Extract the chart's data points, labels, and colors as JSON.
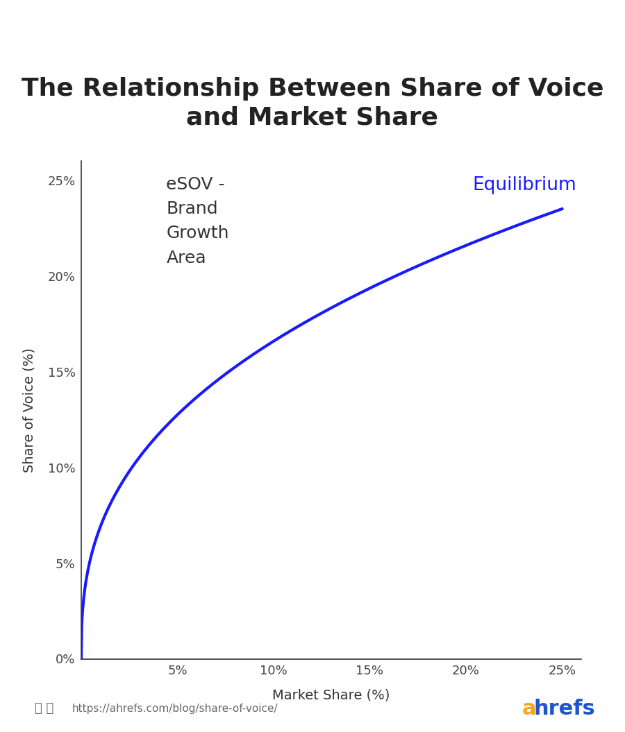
{
  "title": "The Relationship Between Share of Voice\nand Market Share",
  "xlabel": "Market Share (%)",
  "ylabel": "Share of Voice (%)",
  "title_fontsize": 26,
  "label_fontsize": 14,
  "tick_fontsize": 13,
  "line_color": "#1a1aff",
  "line_width": 3.0,
  "annotation_esov": "eSOV -\nBrand\nGrowth\nArea",
  "annotation_eq": "Equilibrium",
  "annotation_eq_color": "#1a1aff",
  "annotation_esov_fontsize": 18,
  "annotation_eq_fontsize": 19,
  "curve_power": 0.38,
  "curve_scale": 0.235,
  "xlim": [
    0,
    0.26
  ],
  "ylim": [
    0,
    0.26
  ],
  "xticks": [
    0.0,
    0.05,
    0.1,
    0.15,
    0.2,
    0.25
  ],
  "yticks": [
    0.0,
    0.05,
    0.1,
    0.15,
    0.2,
    0.25
  ],
  "background_color": "#ffffff",
  "footer_url": "https://ahrefs.com/blog/share-of-voice/",
  "footer_color": "#666666",
  "footer_fontsize": 11,
  "ahrefs_a_color": "#f5a623",
  "ahrefs_hrefs_color": "#2255cc",
  "title_color": "#222222",
  "axis_color": "#333333",
  "tick_color": "#444444",
  "spine_color": "#333333"
}
